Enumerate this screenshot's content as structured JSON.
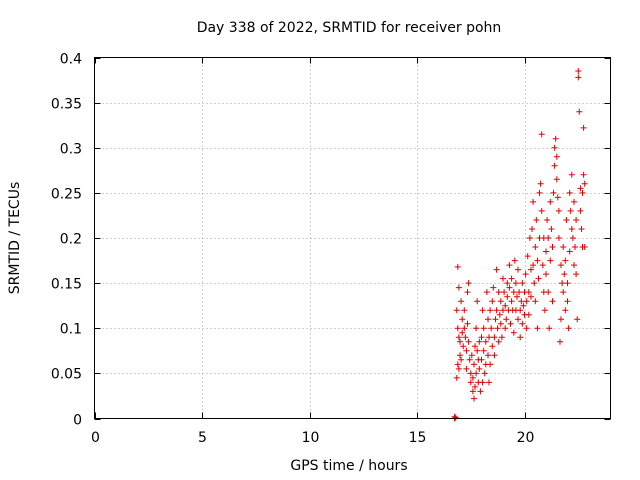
{
  "chart_data": {
    "type": "scatter",
    "title": "Day 338 of 2022, SRMTID for receiver pohn",
    "xlabel": "GPS time / hours",
    "ylabel": "SRMTID / TECUs",
    "xlim": [
      0,
      24
    ],
    "ylim": [
      0,
      0.4
    ],
    "xticks": [
      0,
      5,
      10,
      15,
      20
    ],
    "xtick_labels": [
      "0",
      "5",
      "10",
      "15",
      "20"
    ],
    "yticks": [
      0,
      0.05,
      0.1,
      0.15,
      0.2,
      0.25,
      0.3,
      0.35,
      0.4
    ],
    "ytick_labels": [
      "0",
      "0.05",
      "0.1",
      "0.15",
      "0.2",
      "0.25",
      "0.3",
      "0.35",
      "0.4"
    ],
    "grid": true,
    "marker": "plus",
    "color": "#e00000",
    "series": [
      {
        "name": "SRMTID",
        "points": [
          [
            16.75,
            0.0
          ],
          [
            16.75,
            0.002
          ],
          [
            16.8,
            0.001
          ],
          [
            16.9,
            0.168
          ],
          [
            16.95,
            0.145
          ],
          [
            16.85,
            0.12
          ],
          [
            16.9,
            0.1
          ],
          [
            16.95,
            0.09
          ],
          [
            17.0,
            0.085
          ],
          [
            17.0,
            0.07
          ],
          [
            16.9,
            0.06
          ],
          [
            16.95,
            0.055
          ],
          [
            16.85,
            0.045
          ],
          [
            17.05,
            0.065
          ],
          [
            17.1,
            0.11
          ],
          [
            17.05,
            0.13
          ],
          [
            17.1,
            0.095
          ],
          [
            17.15,
            0.08
          ],
          [
            17.2,
            0.1
          ],
          [
            17.2,
            0.12
          ],
          [
            17.25,
            0.09
          ],
          [
            17.3,
            0.075
          ],
          [
            17.3,
            0.055
          ],
          [
            17.35,
            0.105
          ],
          [
            17.35,
            0.14
          ],
          [
            17.4,
            0.15
          ],
          [
            17.4,
            0.085
          ],
          [
            17.45,
            0.065
          ],
          [
            17.5,
            0.05
          ],
          [
            17.5,
            0.04
          ],
          [
            17.55,
            0.07
          ],
          [
            17.6,
            0.03
          ],
          [
            17.6,
            0.045
          ],
          [
            17.65,
            0.022
          ],
          [
            17.65,
            0.06
          ],
          [
            17.7,
            0.08
          ],
          [
            17.7,
            0.035
          ],
          [
            17.75,
            0.1
          ],
          [
            17.75,
            0.05
          ],
          [
            17.8,
            0.075
          ],
          [
            17.8,
            0.13
          ],
          [
            17.85,
            0.04
          ],
          [
            17.85,
            0.065
          ],
          [
            17.9,
            0.085
          ],
          [
            17.9,
            0.055
          ],
          [
            17.95,
            0.03
          ],
          [
            18.0,
            0.09
          ],
          [
            18.0,
            0.065
          ],
          [
            18.05,
            0.04
          ],
          [
            18.05,
            0.12
          ],
          [
            18.1,
            0.075
          ],
          [
            18.1,
            0.1
          ],
          [
            18.15,
            0.05
          ],
          [
            18.2,
            0.085
          ],
          [
            18.2,
            0.06
          ],
          [
            18.25,
            0.14
          ],
          [
            18.3,
            0.11
          ],
          [
            18.3,
            0.07
          ],
          [
            18.35,
            0.09
          ],
          [
            18.35,
            0.04
          ],
          [
            18.4,
            0.12
          ],
          [
            18.4,
            0.06
          ],
          [
            18.45,
            0.1
          ],
          [
            18.5,
            0.13
          ],
          [
            18.5,
            0.08
          ],
          [
            18.55,
            0.145
          ],
          [
            18.6,
            0.09
          ],
          [
            18.6,
            0.07
          ],
          [
            18.65,
            0.11
          ],
          [
            18.7,
            0.165
          ],
          [
            18.7,
            0.12
          ],
          [
            18.75,
            0.1
          ],
          [
            18.8,
            0.14
          ],
          [
            18.8,
            0.085
          ],
          [
            18.85,
            0.115
          ],
          [
            18.9,
            0.13
          ],
          [
            18.9,
            0.105
          ],
          [
            18.95,
            0.09
          ],
          [
            19.0,
            0.155
          ],
          [
            19.0,
            0.12
          ],
          [
            19.05,
            0.14
          ],
          [
            19.1,
            0.1
          ],
          [
            19.1,
            0.125
          ],
          [
            19.15,
            0.11
          ],
          [
            19.2,
            0.135
          ],
          [
            19.2,
            0.15
          ],
          [
            19.25,
            0.12
          ],
          [
            19.3,
            0.145
          ],
          [
            19.3,
            0.17
          ],
          [
            19.35,
            0.105
          ],
          [
            19.4,
            0.13
          ],
          [
            19.4,
            0.155
          ],
          [
            19.45,
            0.12
          ],
          [
            19.5,
            0.14
          ],
          [
            19.5,
            0.095
          ],
          [
            19.55,
            0.175
          ],
          [
            19.6,
            0.15
          ],
          [
            19.6,
            0.12
          ],
          [
            19.65,
            0.135
          ],
          [
            19.7,
            0.11
          ],
          [
            19.7,
            0.165
          ],
          [
            19.75,
            0.14
          ],
          [
            19.8,
            0.12
          ],
          [
            19.8,
            0.09
          ],
          [
            19.85,
            0.13
          ],
          [
            19.9,
            0.15
          ],
          [
            19.9,
            0.105
          ],
          [
            19.95,
            0.125
          ],
          [
            20.0,
            0.14
          ],
          [
            20.0,
            0.115
          ],
          [
            20.05,
            0.16
          ],
          [
            20.1,
            0.13
          ],
          [
            20.1,
            0.1
          ],
          [
            20.15,
            0.18
          ],
          [
            20.2,
            0.14
          ],
          [
            20.2,
            0.115
          ],
          [
            20.25,
            0.2
          ],
          [
            20.3,
            0.165
          ],
          [
            20.3,
            0.135
          ],
          [
            20.35,
            0.21
          ],
          [
            20.4,
            0.17
          ],
          [
            20.4,
            0.24
          ],
          [
            20.45,
            0.15
          ],
          [
            20.5,
            0.19
          ],
          [
            20.5,
            0.13
          ],
          [
            20.55,
            0.22
          ],
          [
            20.6,
            0.175
          ],
          [
            20.6,
            0.1
          ],
          [
            20.65,
            0.155
          ],
          [
            20.7,
            0.2
          ],
          [
            20.7,
            0.25
          ],
          [
            20.75,
            0.26
          ],
          [
            20.8,
            0.315
          ],
          [
            20.8,
            0.23
          ],
          [
            20.85,
            0.17
          ],
          [
            20.9,
            0.14
          ],
          [
            20.9,
            0.2
          ],
          [
            20.95,
            0.12
          ],
          [
            21.0,
            0.185
          ],
          [
            21.0,
            0.16
          ],
          [
            21.05,
            0.22
          ],
          [
            21.1,
            0.2
          ],
          [
            21.1,
            0.14
          ],
          [
            21.15,
            0.1
          ],
          [
            21.2,
            0.24
          ],
          [
            21.2,
            0.175
          ],
          [
            21.25,
            0.21
          ],
          [
            21.3,
            0.13
          ],
          [
            21.3,
            0.19
          ],
          [
            21.35,
            0.25
          ],
          [
            21.4,
            0.28
          ],
          [
            21.4,
            0.3
          ],
          [
            21.45,
            0.31
          ],
          [
            21.5,
            0.29
          ],
          [
            21.5,
            0.265
          ],
          [
            21.55,
            0.245
          ],
          [
            21.6,
            0.2
          ],
          [
            21.6,
            0.23
          ],
          [
            21.65,
            0.085
          ],
          [
            21.7,
            0.11
          ],
          [
            21.7,
            0.17
          ],
          [
            21.75,
            0.15
          ],
          [
            21.8,
            0.14
          ],
          [
            21.8,
            0.19
          ],
          [
            21.85,
            0.16
          ],
          [
            21.9,
            0.12
          ],
          [
            21.9,
            0.175
          ],
          [
            21.95,
            0.22
          ],
          [
            22.0,
            0.15
          ],
          [
            22.0,
            0.13
          ],
          [
            22.05,
            0.1
          ],
          [
            22.1,
            0.185
          ],
          [
            22.1,
            0.25
          ],
          [
            22.15,
            0.23
          ],
          [
            22.2,
            0.27
          ],
          [
            22.2,
            0.21
          ],
          [
            22.25,
            0.2
          ],
          [
            22.3,
            0.17
          ],
          [
            22.3,
            0.24
          ],
          [
            22.35,
            0.19
          ],
          [
            22.4,
            0.22
          ],
          [
            22.4,
            0.16
          ],
          [
            22.45,
            0.11
          ],
          [
            22.5,
            0.385
          ],
          [
            22.5,
            0.378
          ],
          [
            22.55,
            0.34
          ],
          [
            22.6,
            0.255
          ],
          [
            22.6,
            0.23
          ],
          [
            22.65,
            0.21
          ],
          [
            22.7,
            0.25
          ],
          [
            22.7,
            0.19
          ],
          [
            22.75,
            0.322
          ],
          [
            22.75,
            0.27
          ],
          [
            22.8,
            0.26
          ],
          [
            22.8,
            0.19
          ]
        ]
      }
    ]
  }
}
